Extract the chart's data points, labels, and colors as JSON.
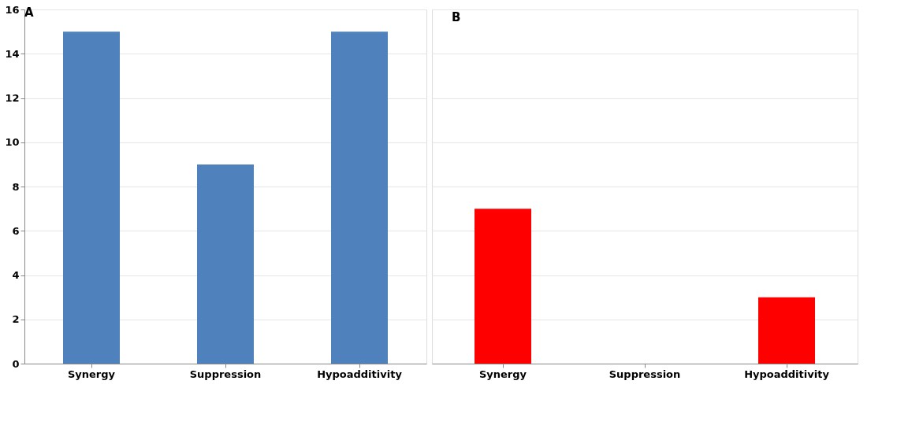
{
  "chart_data": [
    {
      "type": "bar",
      "title": "A",
      "categories": [
        "Synergy",
        "Suppression",
        "Hypoadditivity"
      ],
      "series": [
        {
          "color": "#4f81bd",
          "values": [
            15,
            9,
            15
          ]
        }
      ],
      "ylim": [
        0,
        16
      ],
      "yticks": [
        0,
        2,
        4,
        6,
        8,
        10,
        12,
        14,
        16
      ],
      "grid": "y"
    },
    {
      "type": "bar",
      "title": "B",
      "categories": [
        "Synergy",
        "Suppression",
        "Hypoadditivity"
      ],
      "series": [
        {
          "color": "#ff0000",
          "values": [
            7,
            0,
            3
          ]
        }
      ],
      "ylim": [
        0,
        16
      ],
      "yticks": [
        0,
        2,
        4,
        6,
        8,
        10,
        12,
        14,
        16
      ],
      "grid": "y",
      "tick_labels": "x"
    }
  ]
}
